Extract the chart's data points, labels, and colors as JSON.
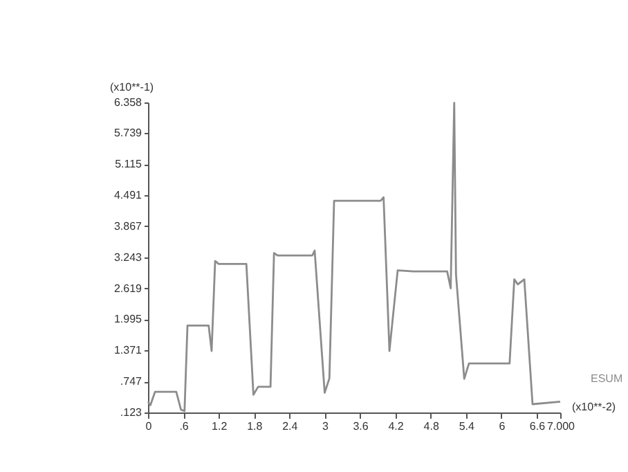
{
  "chart_data": {
    "type": "line",
    "xlabel": "(x10**-2)",
    "ylabel": "(x10**-1)",
    "x": [
      0,
      0.04,
      0.12,
      0.48,
      0.56,
      0.62,
      0.67,
      1.03,
      1.08,
      1.14,
      1.2,
      1.67,
      1.79,
      1.87,
      2.08,
      2.14,
      2.2,
      2.79,
      2.83,
      3.0,
      3.08,
      3.16,
      3.95,
      4.0,
      4.1,
      4.16,
      4.24,
      4.5,
      5.08,
      5.14,
      5.2,
      5.23,
      5.37,
      5.45,
      6.14,
      6.22,
      6.28,
      6.39,
      6.53,
      7.0
    ],
    "series": [
      {
        "name": "ESUM",
        "color": "#8c8c8c",
        "values": [
          0.34,
          0.27,
          0.54,
          0.54,
          0.18,
          0.15,
          1.87,
          1.87,
          1.36,
          3.17,
          3.11,
          3.11,
          0.48,
          0.64,
          0.64,
          3.33,
          3.28,
          3.28,
          3.38,
          0.52,
          0.81,
          4.38,
          4.38,
          4.45,
          1.36,
          2.06,
          2.98,
          2.96,
          2.96,
          2.62,
          6.35,
          2.9,
          0.8,
          1.11,
          1.11,
          2.8,
          2.7,
          2.8,
          0.29,
          0.34
        ]
      }
    ],
    "xlim": [
      0,
      7.0
    ],
    "xticks": [
      0,
      {
        "value": 0.6,
        "label": ".6"
      },
      1.2,
      1.8,
      2.4,
      3,
      3.6,
      4.2,
      4.8,
      5.4,
      6,
      6.6,
      {
        "value": 7.0,
        "label": "7.000"
      }
    ],
    "ylim": [
      0.123,
      6.358
    ],
    "yticks": [
      {
        "value": 0.123,
        "label": ".123"
      },
      {
        "value": 0.747,
        "label": ".747"
      },
      1.371,
      1.995,
      2.619,
      3.243,
      3.867,
      4.491,
      5.115,
      5.739,
      6.358
    ],
    "grid": false,
    "legend": "right",
    "marker": "none",
    "line_style": "solid"
  }
}
